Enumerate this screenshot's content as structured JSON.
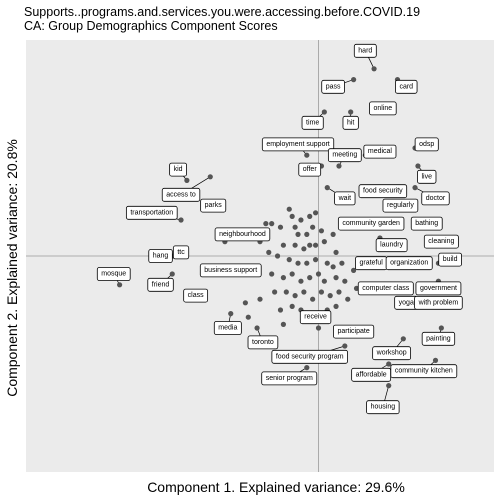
{
  "chart_data": {
    "type": "scatter",
    "title": "Supports..programs.and.services.you.were.accessing.before.COVID.19",
    "subtitle": "CA: Group Demographics Component Scores",
    "xlabel": "Component 1. Explained variance: 29.6%",
    "ylabel": "Component 2. Explained variance: 20.8%",
    "xlim": [
      -1.0,
      0.6
    ],
    "ylim": [
      -0.6,
      0.6
    ],
    "grid": false,
    "background": "#ebebeb",
    "point_color": "#555555",
    "labeled_points": [
      {
        "label": "hard",
        "x": 0.19,
        "y": 0.52,
        "lx": 0.16,
        "ly": 0.57
      },
      {
        "label": "pass",
        "x": 0.12,
        "y": 0.49,
        "lx": 0.05,
        "ly": 0.47
      },
      {
        "label": "card",
        "x": 0.27,
        "y": 0.49,
        "lx": 0.3,
        "ly": 0.47
      },
      {
        "label": "online",
        "x": 0.19,
        "y": 0.42,
        "lx": 0.22,
        "ly": 0.41
      },
      {
        "label": "time",
        "x": 0.02,
        "y": 0.4,
        "lx": -0.02,
        "ly": 0.37
      },
      {
        "label": "hit",
        "x": 0.11,
        "y": 0.4,
        "lx": 0.11,
        "ly": 0.37
      },
      {
        "label": "employment support",
        "x": -0.04,
        "y": 0.28,
        "lx": -0.07,
        "ly": 0.31
      },
      {
        "label": "odsp",
        "x": 0.33,
        "y": 0.3,
        "lx": 0.37,
        "ly": 0.31
      },
      {
        "label": "medical",
        "x": 0.16,
        "y": 0.28,
        "lx": 0.21,
        "ly": 0.29
      },
      {
        "label": "meeting",
        "x": 0.07,
        "y": 0.25,
        "lx": 0.09,
        "ly": 0.28
      },
      {
        "label": "offer",
        "x": 0.01,
        "y": 0.25,
        "lx": -0.03,
        "ly": 0.24
      },
      {
        "label": "live",
        "x": 0.34,
        "y": 0.25,
        "lx": 0.37,
        "ly": 0.22
      },
      {
        "label": "kid",
        "x": -0.45,
        "y": 0.21,
        "lx": -0.48,
        "ly": 0.24
      },
      {
        "label": "access to",
        "x": -0.37,
        "y": 0.22,
        "lx": -0.47,
        "ly": 0.17
      },
      {
        "label": "wait",
        "x": 0.03,
        "y": 0.19,
        "lx": 0.09,
        "ly": 0.16
      },
      {
        "label": "food security",
        "x": 0.16,
        "y": 0.19,
        "lx": 0.22,
        "ly": 0.18
      },
      {
        "label": "doctor",
        "x": 0.33,
        "y": 0.19,
        "lx": 0.4,
        "ly": 0.16
      },
      {
        "label": "parks",
        "x": -0.33,
        "y": 0.13,
        "lx": -0.36,
        "ly": 0.14
      },
      {
        "label": "regularly",
        "x": 0.28,
        "y": 0.15,
        "lx": 0.28,
        "ly": 0.14
      },
      {
        "label": "transportation",
        "x": -0.47,
        "y": 0.1,
        "lx": -0.57,
        "ly": 0.12
      },
      {
        "label": "community garden",
        "x": 0.25,
        "y": 0.08,
        "lx": 0.18,
        "ly": 0.09
      },
      {
        "label": "bathing",
        "x": 0.36,
        "y": 0.1,
        "lx": 0.37,
        "ly": 0.09
      },
      {
        "label": "neighbourhood",
        "x": -0.32,
        "y": 0.04,
        "lx": -0.26,
        "ly": 0.06
      },
      {
        "label": "laundry",
        "x": 0.21,
        "y": 0.05,
        "lx": 0.25,
        "ly": 0.03
      },
      {
        "label": "cleaning",
        "x": 0.37,
        "y": 0.04,
        "lx": 0.42,
        "ly": 0.04
      },
      {
        "label": "hang",
        "x": -0.5,
        "y": 0.0,
        "lx": -0.54,
        "ly": 0.0
      },
      {
        "label": "ttc",
        "x": -0.46,
        "y": 0.0,
        "lx": -0.47,
        "ly": 0.01
      },
      {
        "label": "grateful",
        "x": 0.18,
        "y": -0.03,
        "lx": 0.18,
        "ly": -0.02
      },
      {
        "label": "organization",
        "x": 0.28,
        "y": -0.01,
        "lx": 0.31,
        "ly": -0.02
      },
      {
        "label": "build",
        "x": 0.41,
        "y": -0.02,
        "lx": 0.45,
        "ly": -0.01
      },
      {
        "label": "business support",
        "x": -0.33,
        "y": -0.04,
        "lx": -0.3,
        "ly": -0.04
      },
      {
        "label": "mosque",
        "x": -0.68,
        "y": -0.08,
        "lx": -0.7,
        "ly": -0.05
      },
      {
        "label": "friend",
        "x": -0.5,
        "y": -0.05,
        "lx": -0.54,
        "ly": -0.08
      },
      {
        "label": "computer class",
        "x": 0.22,
        "y": -0.1,
        "lx": 0.23,
        "ly": -0.09
      },
      {
        "label": "government",
        "x": 0.41,
        "y": -0.07,
        "lx": 0.41,
        "ly": -0.09
      },
      {
        "label": "class",
        "x": -0.4,
        "y": -0.1,
        "lx": -0.42,
        "ly": -0.11
      },
      {
        "label": "yoga",
        "x": 0.31,
        "y": -0.12,
        "lx": 0.3,
        "ly": -0.13
      },
      {
        "label": "with problem",
        "x": 0.43,
        "y": -0.14,
        "lx": 0.41,
        "ly": -0.13
      },
      {
        "label": "receive",
        "x": 0.01,
        "y": -0.16,
        "lx": -0.01,
        "ly": -0.17
      },
      {
        "label": "media",
        "x": -0.3,
        "y": -0.16,
        "lx": -0.31,
        "ly": -0.2
      },
      {
        "label": "participate",
        "x": 0.14,
        "y": -0.2,
        "lx": 0.12,
        "ly": -0.21
      },
      {
        "label": "toronto",
        "x": -0.21,
        "y": -0.2,
        "lx": -0.19,
        "ly": -0.24
      },
      {
        "label": "painting",
        "x": 0.42,
        "y": -0.2,
        "lx": 0.41,
        "ly": -0.23
      },
      {
        "label": "workshop",
        "x": 0.29,
        "y": -0.23,
        "lx": 0.25,
        "ly": -0.27
      },
      {
        "label": "food security program",
        "x": 0.09,
        "y": -0.25,
        "lx": -0.03,
        "ly": -0.28
      },
      {
        "label": "affordable",
        "x": 0.24,
        "y": -0.3,
        "lx": 0.18,
        "ly": -0.33
      },
      {
        "label": "community kitchen",
        "x": 0.4,
        "y": -0.29,
        "lx": 0.36,
        "ly": -0.32
      },
      {
        "label": "senior program",
        "x": -0.04,
        "y": -0.31,
        "lx": -0.1,
        "ly": -0.34
      },
      {
        "label": "housing",
        "x": 0.24,
        "y": -0.36,
        "lx": 0.22,
        "ly": -0.42
      }
    ],
    "unlabeled_points": [
      {
        "x": -0.18,
        "y": 0.09
      },
      {
        "x": -0.16,
        "y": 0.09
      },
      {
        "x": -0.13,
        "y": 0.08
      },
      {
        "x": -0.09,
        "y": 0.11
      },
      {
        "x": -0.08,
        "y": 0.08
      },
      {
        "x": -0.06,
        "y": 0.1
      },
      {
        "x": -0.03,
        "y": 0.11
      },
      {
        "x": -0.01,
        "y": 0.12
      },
      {
        "x": -0.07,
        "y": 0.06
      },
      {
        "x": -0.04,
        "y": 0.06
      },
      {
        "x": -0.02,
        "y": 0.08
      },
      {
        "x": 0.01,
        "y": 0.07
      },
      {
        "x": -0.12,
        "y": 0.03
      },
      {
        "x": -0.08,
        "y": 0.03
      },
      {
        "x": -0.05,
        "y": 0.02
      },
      {
        "x": -0.03,
        "y": 0.03
      },
      {
        "x": -0.01,
        "y": 0.03
      },
      {
        "x": 0.02,
        "y": 0.04
      },
      {
        "x": 0.05,
        "y": 0.06
      },
      {
        "x": 0.06,
        "y": 0.01
      },
      {
        "x": -0.17,
        "y": 0.01
      },
      {
        "x": -0.14,
        "y": 0.0
      },
      {
        "x": -0.1,
        "y": -0.01
      },
      {
        "x": -0.07,
        "y": -0.02
      },
      {
        "x": -0.04,
        "y": -0.02
      },
      {
        "x": -0.01,
        "y": -0.01
      },
      {
        "x": 0.03,
        "y": -0.02
      },
      {
        "x": 0.05,
        "y": -0.03
      },
      {
        "x": 0.08,
        "y": -0.02
      },
      {
        "x": -0.16,
        "y": -0.05
      },
      {
        "x": -0.12,
        "y": -0.06
      },
      {
        "x": -0.09,
        "y": -0.05
      },
      {
        "x": -0.06,
        "y": -0.07
      },
      {
        "x": -0.03,
        "y": -0.06
      },
      {
        "x": 0.0,
        "y": -0.05
      },
      {
        "x": 0.02,
        "y": -0.07
      },
      {
        "x": 0.06,
        "y": -0.06
      },
      {
        "x": 0.09,
        "y": -0.07
      },
      {
        "x": -0.15,
        "y": -0.1
      },
      {
        "x": -0.11,
        "y": -0.1
      },
      {
        "x": -0.08,
        "y": -0.11
      },
      {
        "x": -0.05,
        "y": -0.1
      },
      {
        "x": -0.02,
        "y": -0.12
      },
      {
        "x": 0.01,
        "y": -0.1
      },
      {
        "x": 0.04,
        "y": -0.11
      },
      {
        "x": 0.07,
        "y": -0.1
      },
      {
        "x": 0.1,
        "y": -0.12
      },
      {
        "x": -0.13,
        "y": -0.15
      },
      {
        "x": -0.09,
        "y": -0.14
      },
      {
        "x": -0.06,
        "y": -0.15
      },
      {
        "x": -0.03,
        "y": -0.16
      },
      {
        "x": 0.03,
        "y": -0.15
      },
      {
        "x": 0.06,
        "y": -0.14
      },
      {
        "x": -0.25,
        "y": -0.13
      },
      {
        "x": -0.2,
        "y": -0.12
      },
      {
        "x": -0.24,
        "y": -0.17
      },
      {
        "x": 0.12,
        "y": -0.04
      },
      {
        "x": 0.13,
        "y": -0.09
      },
      {
        "x": -0.1,
        "y": 0.13
      },
      {
        "x": -0.2,
        "y": 0.04
      },
      {
        "x": 0.08,
        "y": 0.08
      },
      {
        "x": -0.12,
        "y": -0.19
      },
      {
        "x": 0.0,
        "y": -0.2
      }
    ]
  }
}
